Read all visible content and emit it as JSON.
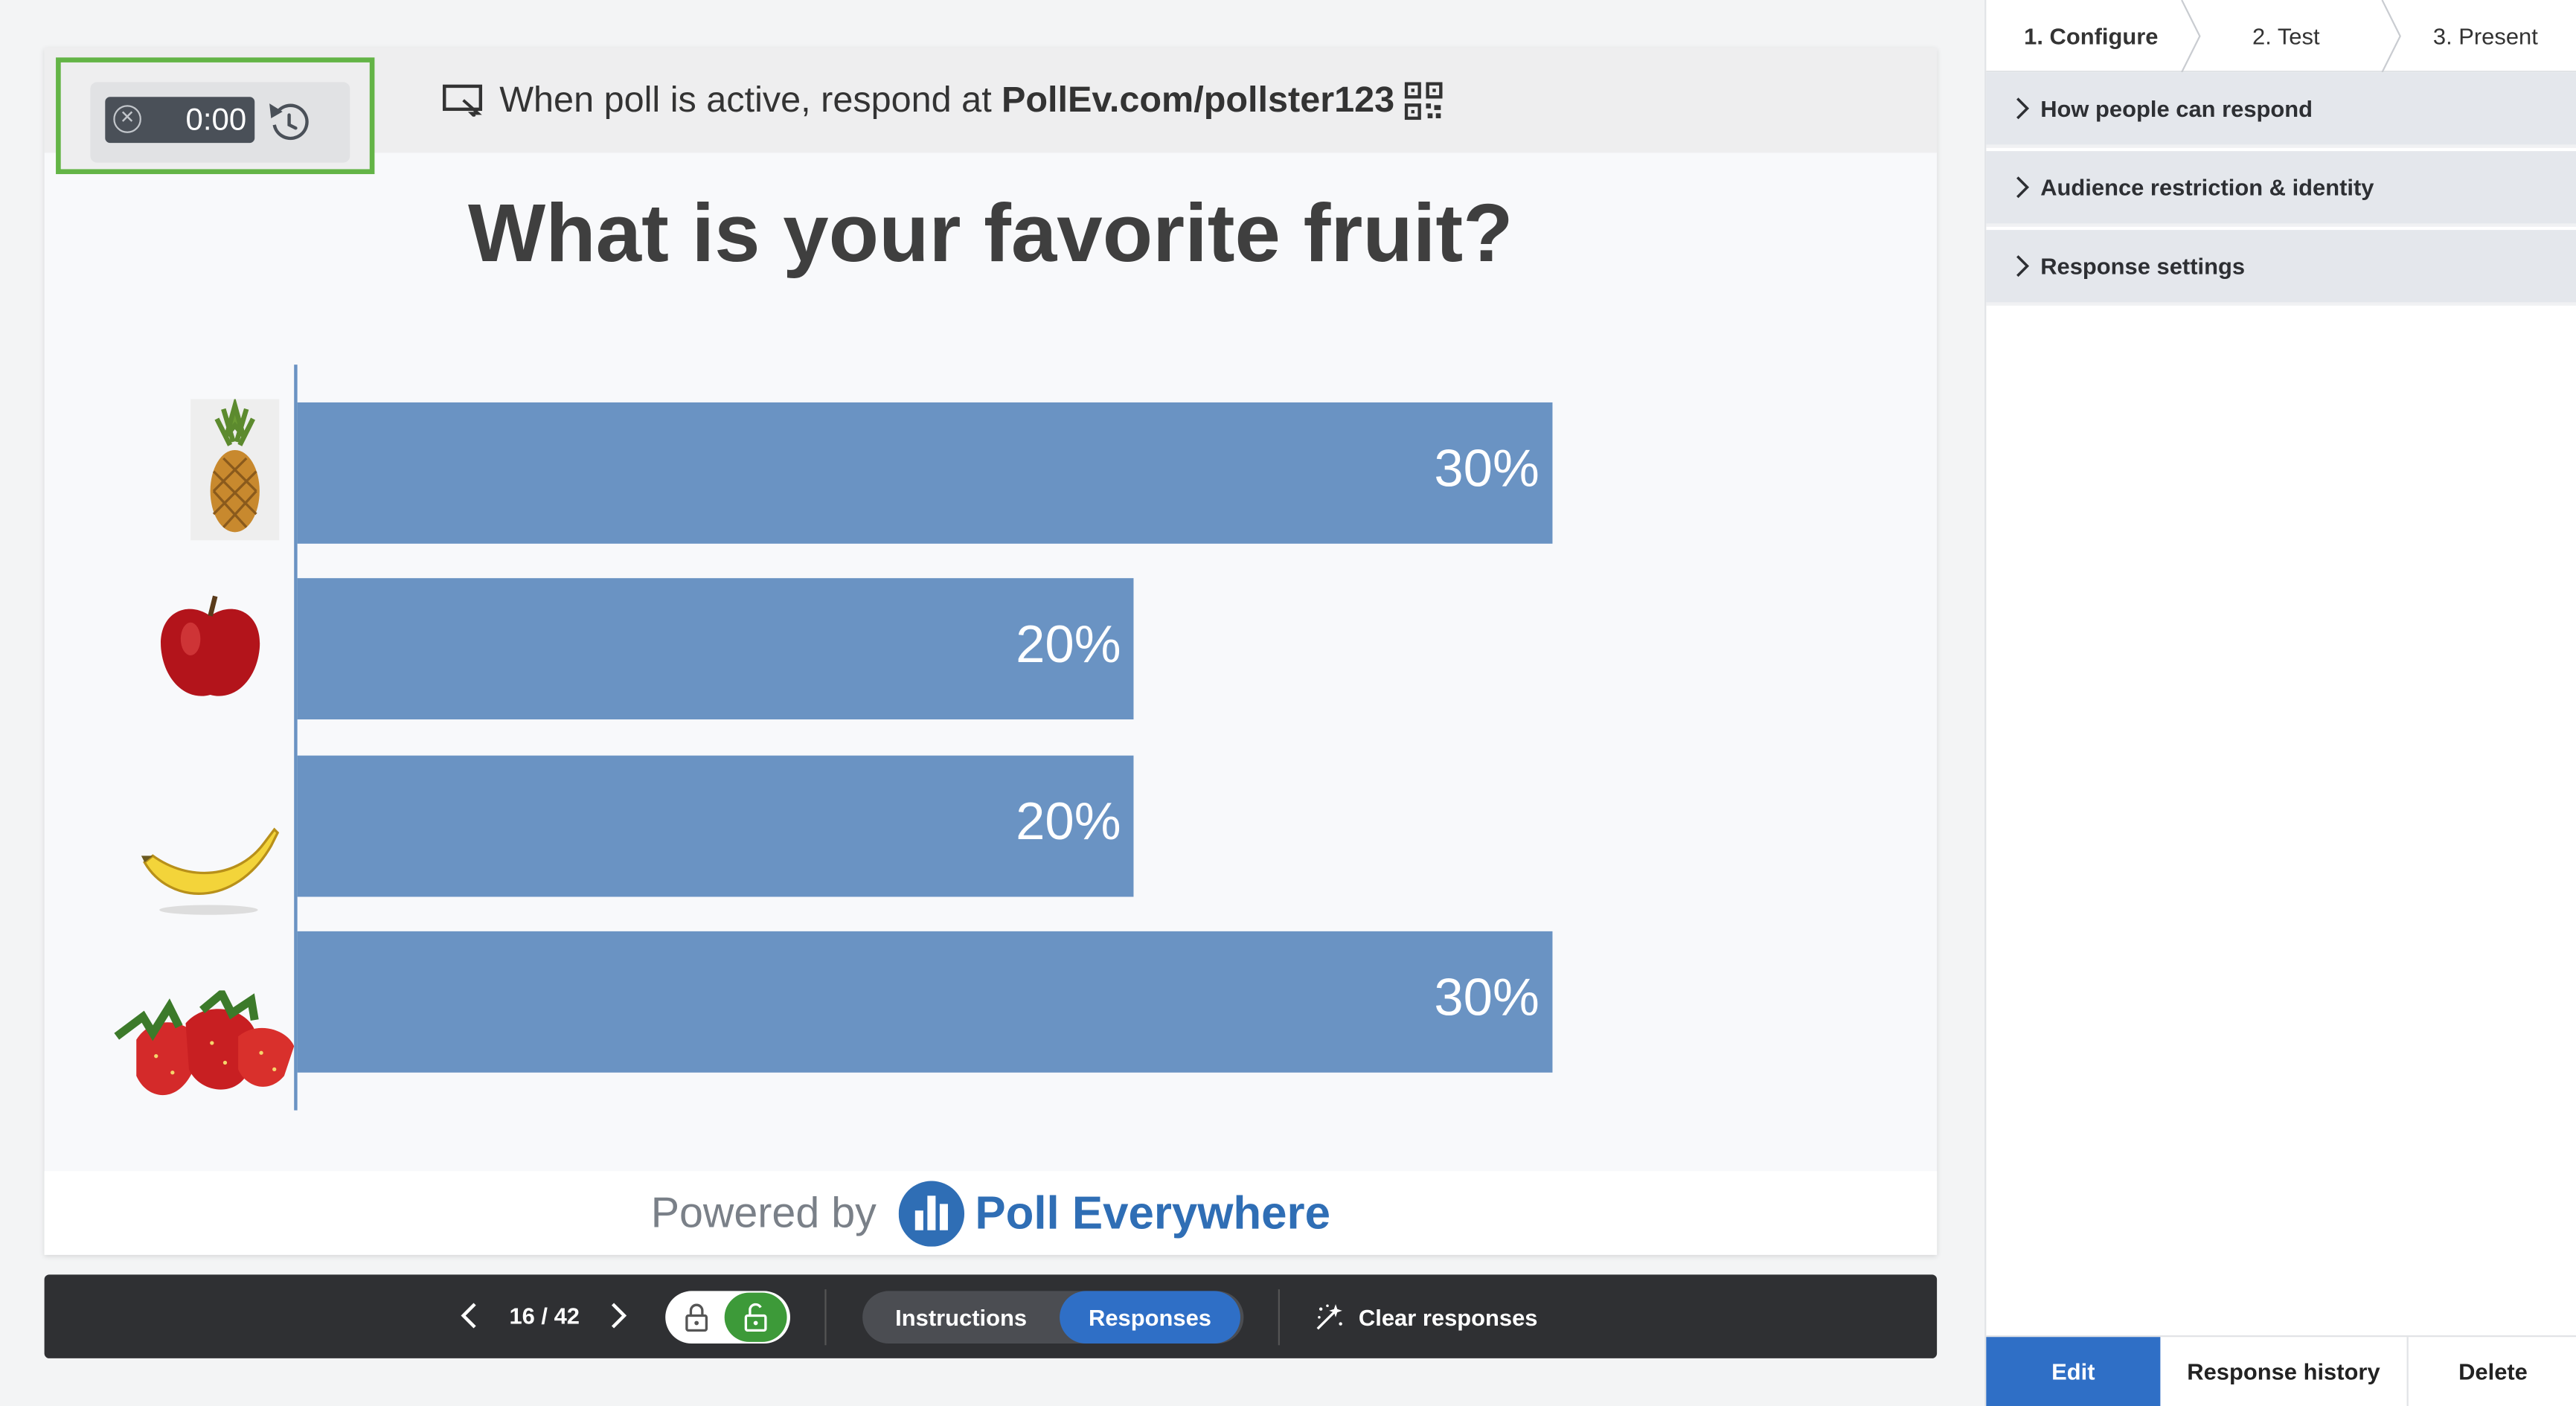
{
  "timer": {
    "value": "0:00"
  },
  "header": {
    "respond_prefix": "When poll is active, respond at",
    "respond_url": "PollEv.com/pollster123"
  },
  "slide": {
    "title": "What is your favorite fruit?"
  },
  "chart_data": {
    "type": "bar",
    "orientation": "horizontal",
    "categories": [
      "pineapple",
      "apple",
      "banana",
      "strawberry"
    ],
    "values": [
      30,
      20,
      20,
      30
    ],
    "labels": [
      "30%",
      "20%",
      "20%",
      "30%"
    ],
    "xlim": [
      0,
      45
    ],
    "color": "#6a93c3"
  },
  "footer": {
    "powered_by": "Powered by",
    "brand": "Poll Everywhere"
  },
  "controls": {
    "page_indicator": "16 / 42",
    "instructions_label": "Instructions",
    "responses_label": "Responses",
    "clear_label": "Clear responses"
  },
  "steps": [
    {
      "label": "1. Configure"
    },
    {
      "label": "2. Test"
    },
    {
      "label": "3. Present"
    }
  ],
  "sections": [
    {
      "label": "How people can respond"
    },
    {
      "label": "Audience restriction & identity"
    },
    {
      "label": "Response settings"
    }
  ],
  "actions": {
    "edit": "Edit",
    "history": "Response history",
    "delete": "Delete"
  },
  "colors": {
    "bar": "#6a93c3",
    "brand_blue": "#2f6eb5",
    "active_blue": "#2f6fc6",
    "highlight_green": "#63b446",
    "unlock_green": "#3d9a39"
  },
  "icons": [
    "close-circle-icon",
    "restart-timer-icon",
    "screen-icon",
    "qr-code-icon",
    "chevron-left-icon",
    "chevron-right-icon",
    "lock-icon",
    "unlock-icon",
    "sparkle-clear-icon",
    "expand-chevron-icon",
    "poll-everywhere-logo-icon"
  ]
}
